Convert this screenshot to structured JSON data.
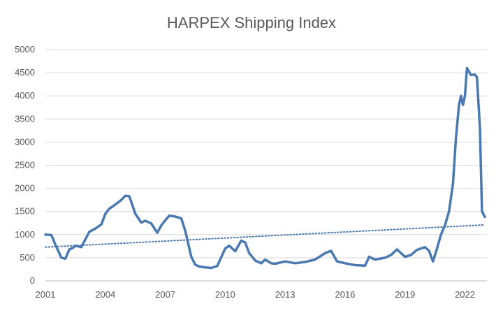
{
  "chart_data": {
    "type": "line",
    "title": "HARPEX Shipping Index",
    "xlabel": "",
    "ylabel": "",
    "xlim": [
      2001,
      2023.1
    ],
    "ylim": [
      0,
      5000
    ],
    "x_tick_labels": [
      "2001",
      "2004",
      "2007",
      "2010",
      "2013",
      "2016",
      "2019",
      "2022"
    ],
    "y_tick_labels": [
      "0",
      "500",
      "1000",
      "1500",
      "2000",
      "2500",
      "3000",
      "3500",
      "4000",
      "4500",
      "5000"
    ],
    "grid": "horizontal",
    "legend": "none",
    "series": [
      {
        "style": "solid",
        "color": "#4a79b0",
        "x": [
          2001.0,
          2001.3,
          2001.5,
          2001.8,
          2002.0,
          2002.2,
          2002.4,
          2002.5,
          2002.8,
          2003.0,
          2003.2,
          2003.5,
          2003.8,
          2004.0,
          2004.2,
          2004.5,
          2004.8,
          2005.0,
          2005.2,
          2005.5,
          2005.8,
          2006.0,
          2006.3,
          2006.6,
          2006.8,
          2007.0,
          2007.2,
          2007.5,
          2007.8,
          2008.0,
          2008.3,
          2008.5,
          2008.7,
          2008.85,
          2009.0,
          2009.3,
          2009.6,
          2010.0,
          2010.2,
          2010.5,
          2010.8,
          2011.0,
          2011.2,
          2011.5,
          2011.8,
          2012.0,
          2012.3,
          2012.5,
          2013.0,
          2013.5,
          2014.0,
          2014.5,
          2015.0,
          2015.3,
          2015.6,
          2016.0,
          2016.5,
          2017.0,
          2017.2,
          2017.5,
          2018.0,
          2018.3,
          2018.6,
          2019.0,
          2019.3,
          2019.6,
          2020.0,
          2020.2,
          2020.4,
          2020.6,
          2020.8,
          2021.0,
          2021.2,
          2021.4,
          2021.55,
          2021.7,
          2021.8,
          2021.9,
          2022.0,
          2022.1,
          2022.3,
          2022.5,
          2022.6,
          2022.75,
          2022.85,
          2023.0
        ],
        "values": [
          1000,
          990,
          780,
          500,
          480,
          680,
          720,
          760,
          730,
          900,
          1060,
          1130,
          1220,
          1450,
          1560,
          1650,
          1750,
          1840,
          1830,
          1450,
          1260,
          1300,
          1240,
          1040,
          1200,
          1310,
          1410,
          1390,
          1350,
          1080,
          520,
          350,
          310,
          300,
          290,
          280,
          320,
          700,
          760,
          640,
          870,
          830,
          600,
          440,
          380,
          460,
          380,
          370,
          420,
          380,
          410,
          460,
          600,
          650,
          420,
          380,
          340,
          330,
          520,
          460,
          500,
          560,
          680,
          520,
          560,
          670,
          730,
          650,
          420,
          700,
          1000,
          1200,
          1500,
          2100,
          3100,
          3800,
          4000,
          3800,
          4000,
          4600,
          4450,
          4460,
          4400,
          3300,
          1500,
          1380
        ]
      },
      {
        "style": "dotted",
        "color": "#4a79b0",
        "x": [
          2001,
          2023
        ],
        "values": [
          730,
          1210
        ]
      }
    ]
  }
}
